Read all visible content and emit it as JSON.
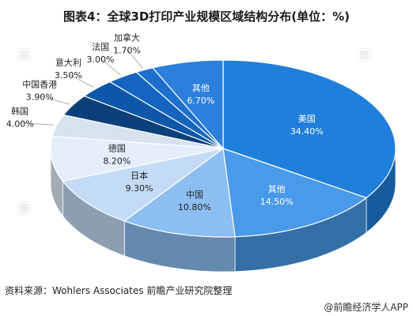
{
  "title": "图表4：全球3D打印产业规模区域结构分布(单位：%)",
  "source": "资料来源：Wohlers Associates 前瞻产业研究院整理",
  "brand": "@前瞻经济学人APP",
  "chart_data": {
    "type": "pie",
    "title": "图表4：全球3D打印产业规模区域结构分布(单位：%)",
    "unit": "%",
    "slices": [
      {
        "label": "美国",
        "value": 34.4,
        "value_label": "34.40%",
        "color": "#1f7fdb"
      },
      {
        "label": "其他",
        "value": 14.5,
        "value_label": "14.50%",
        "color": "#4a9aea"
      },
      {
        "label": "中国",
        "value": 10.8,
        "value_label": "10.80%",
        "color": "#8cbef2"
      },
      {
        "label": "日本",
        "value": 9.3,
        "value_label": "9.30%",
        "color": "#c4dbf6"
      },
      {
        "label": "德国",
        "value": 8.2,
        "value_label": "8.20%",
        "color": "#e3eefa"
      },
      {
        "label": "韩国",
        "value": 4.0,
        "value_label": "4.00%",
        "color": "#d7e2ef"
      },
      {
        "label": "中国香港",
        "value": 3.9,
        "value_label": "3.90%",
        "color": "#0b3f7a"
      },
      {
        "label": "意大利",
        "value": 3.5,
        "value_label": "3.50%",
        "color": "#0d56a8"
      },
      {
        "label": "法国",
        "value": 3.0,
        "value_label": "3.00%",
        "color": "#1565c0"
      },
      {
        "label": "加拿大",
        "value": 1.7,
        "value_label": "1.70%",
        "color": "#1e6fcc"
      },
      {
        "label": "其他",
        "value": 6.7,
        "value_label": "6.70%",
        "color": "#2c80dc"
      }
    ]
  }
}
